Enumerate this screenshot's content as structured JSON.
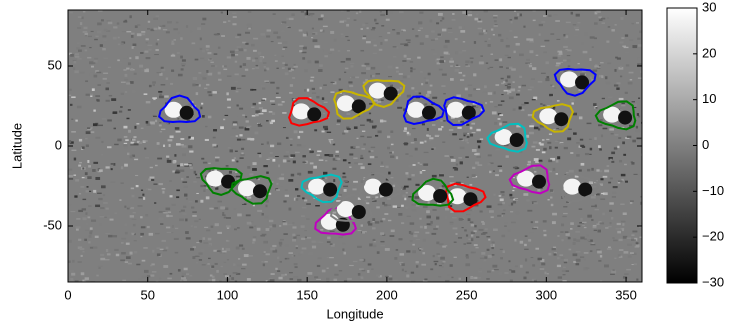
{
  "chart_data": {
    "type": "image",
    "xlabel": "Longitude",
    "ylabel": "Latitude",
    "xlim": [
      0,
      360
    ],
    "xticks": [
      0,
      50,
      100,
      150,
      200,
      250,
      300,
      350
    ],
    "ylim": [
      -85,
      85
    ],
    "yticks": [
      -50,
      0,
      50
    ],
    "clim": [
      -30,
      30
    ],
    "cticks": [
      {
        "value": -30,
        "label": "−30"
      },
      {
        "value": -20,
        "label": "−20"
      },
      {
        "value": -10,
        "label": "−10"
      },
      0,
      10,
      20,
      30
    ],
    "series": [
      {
        "color": "#0000ff",
        "x": [
          70,
          222,
          247,
          318
        ],
        "y": [
          22,
          22,
          22,
          41
        ]
      },
      {
        "color": "#ff0000",
        "x": [
          150,
          248
        ],
        "y": [
          21,
          -32
        ]
      },
      {
        "color": "#c8b400",
        "x": [
          178,
          198,
          305
        ],
        "y": [
          26,
          34,
          18
        ]
      },
      {
        "color": "#008000",
        "x": [
          96,
          116,
          345,
          229
        ],
        "y": [
          -21,
          -27,
          19,
          -30
        ]
      },
      {
        "color": "#00c0c0",
        "x": [
          160,
          277
        ],
        "y": [
          -26,
          5
        ]
      },
      {
        "color": "#c000c0",
        "x": [
          291,
          168
        ],
        "y": [
          -21,
          -48
        ]
      },
      {
        "color": "#808080",
        "x": [
          178,
          195,
          320
        ],
        "y": [
          -40,
          -26,
          -26
        ]
      }
    ]
  }
}
